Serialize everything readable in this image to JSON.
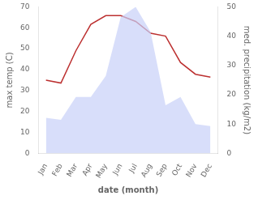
{
  "chart_data": {
    "type": "line",
    "categories": [
      "Jan",
      "Feb",
      "Mar",
      "Apr",
      "May",
      "Jun",
      "Jul",
      "Aug",
      "Sep",
      "Oct",
      "Nov",
      "Dec"
    ],
    "series": [
      {
        "type": "area",
        "color": "#c8d0f8",
        "values": [
          17,
          16,
          27,
          27,
          37,
          65,
          70,
          58,
          23,
          27,
          14,
          13
        ]
      },
      {
        "type": "line",
        "color": "#bc3030",
        "axis": "y2",
        "values": [
          25,
          24,
          35,
          44,
          47,
          47,
          45,
          41,
          40,
          31,
          27,
          26
        ]
      }
    ],
    "xlabel": "date (month)",
    "ylabel": "max temp (C)",
    "y2label": "med. precipitation (kg/m2)",
    "ylim": [
      0,
      70
    ],
    "yticks": [
      0,
      10,
      20,
      30,
      40,
      50,
      60,
      70
    ],
    "y2lim": [
      0,
      50
    ],
    "y2ticks": [
      0,
      10,
      20,
      30,
      40,
      50
    ],
    "grid": false
  }
}
